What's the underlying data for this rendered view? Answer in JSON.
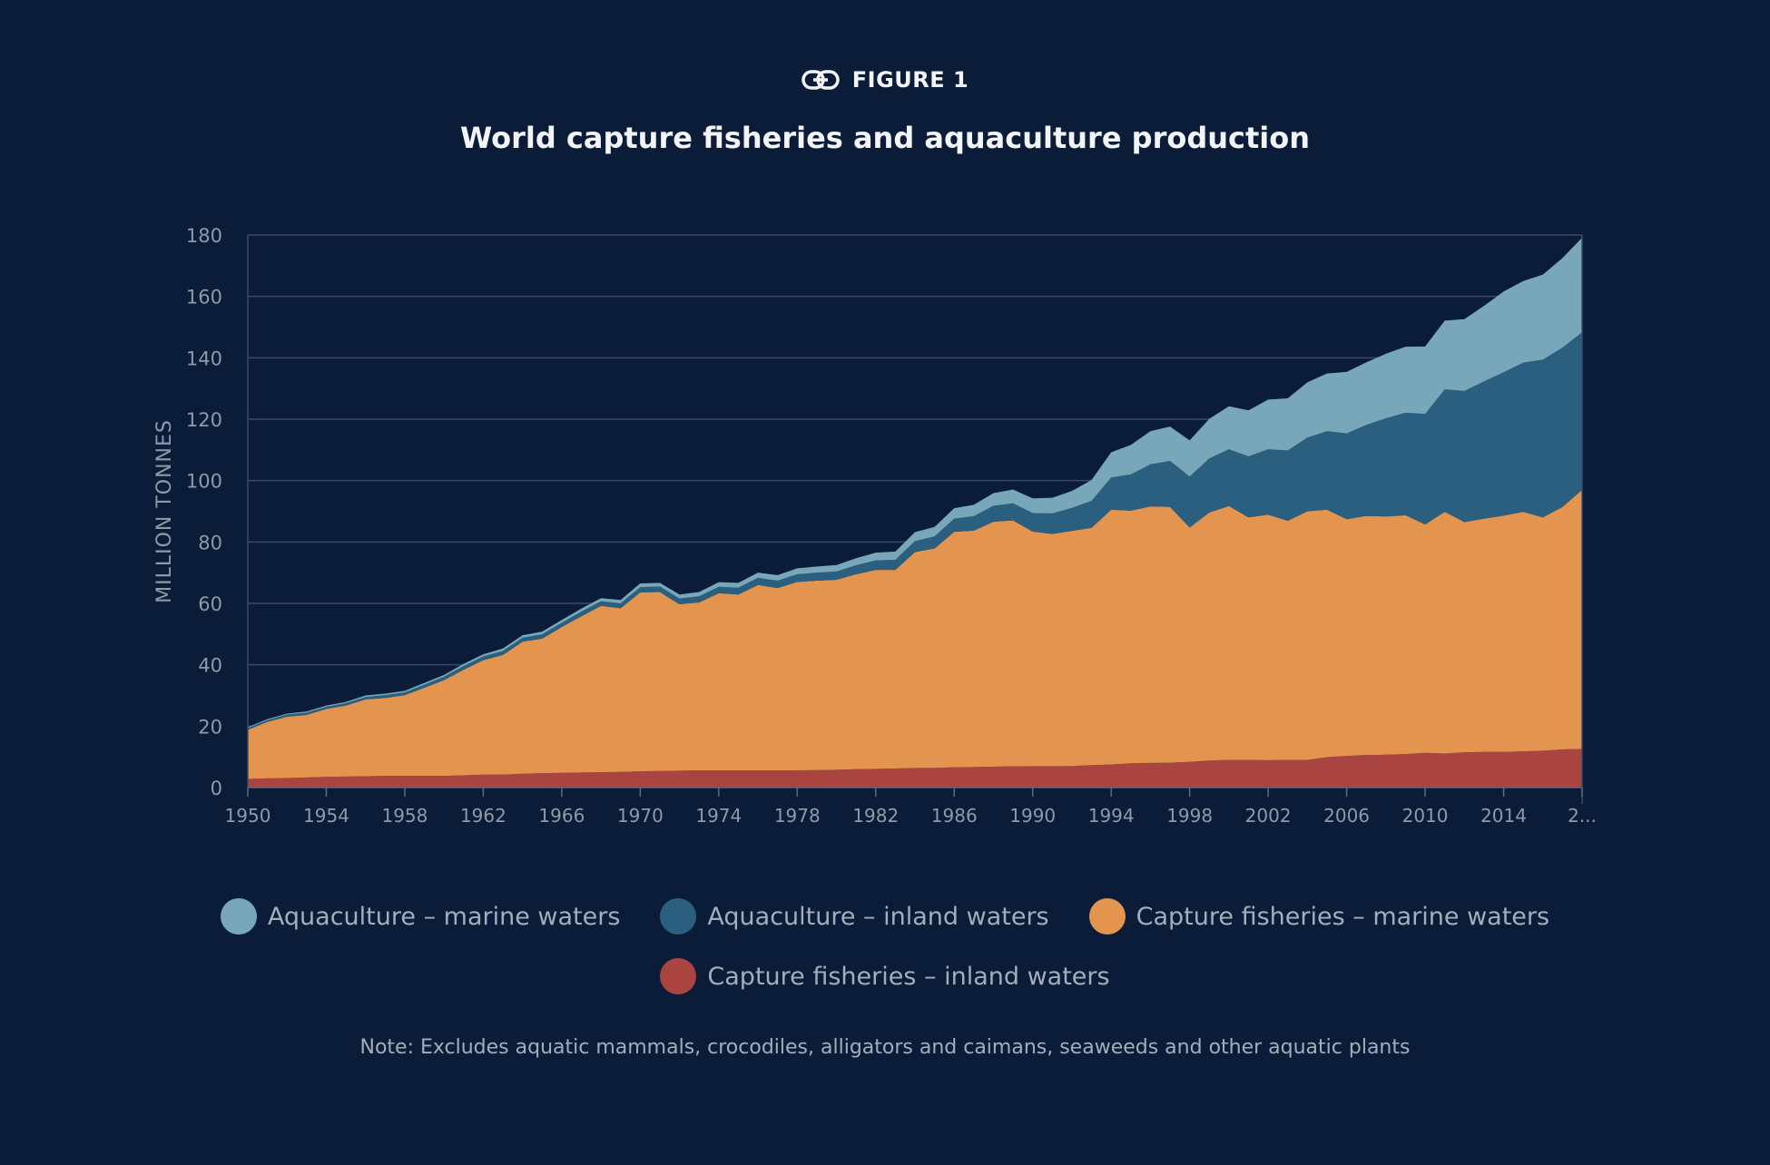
{
  "figure": {
    "label": "FIGURE 1",
    "link_icon": "link-icon"
  },
  "colors": {
    "background": "#0b1c38",
    "gridline": "#3a4a66",
    "axis_text": "#8f99a8"
  },
  "chart_data": {
    "type": "area",
    "stacked": true,
    "title": "World capture fisheries and aquaculture production",
    "xlabel": "",
    "ylabel": "MILLION TONNES",
    "xlim": [
      1950,
      2018
    ],
    "ylim": [
      0,
      180
    ],
    "yticks": [
      0,
      20,
      40,
      60,
      80,
      100,
      120,
      140,
      160,
      180
    ],
    "xtick_labels": [
      "1950",
      "1954",
      "1958",
      "1962",
      "1966",
      "1970",
      "1974",
      "1978",
      "1982",
      "1986",
      "1990",
      "1994",
      "1998",
      "2002",
      "2006",
      "2010",
      "2014",
      "2..."
    ],
    "grid": "horizontal",
    "legend_position": "bottom",
    "x": [
      1950,
      1951,
      1952,
      1953,
      1954,
      1955,
      1956,
      1957,
      1958,
      1959,
      1960,
      1961,
      1962,
      1963,
      1964,
      1965,
      1966,
      1967,
      1968,
      1969,
      1970,
      1971,
      1972,
      1973,
      1974,
      1975,
      1976,
      1977,
      1978,
      1979,
      1980,
      1981,
      1982,
      1983,
      1984,
      1985,
      1986,
      1987,
      1988,
      1989,
      1990,
      1991,
      1992,
      1993,
      1994,
      1995,
      1996,
      1997,
      1998,
      1999,
      2000,
      2001,
      2002,
      2003,
      2004,
      2005,
      2006,
      2007,
      2008,
      2009,
      2010,
      2011,
      2012,
      2013,
      2014,
      2015,
      2016,
      2017,
      2018
    ],
    "series": [
      {
        "name": "Capture fisheries – inland waters",
        "color": "#a94441",
        "values": [
          2.8,
          3.0,
          3.1,
          3.3,
          3.5,
          3.6,
          3.7,
          3.8,
          3.8,
          3.8,
          3.8,
          4.0,
          4.2,
          4.2,
          4.5,
          4.7,
          4.8,
          4.9,
          5.0,
          5.1,
          5.3,
          5.4,
          5.5,
          5.6,
          5.6,
          5.6,
          5.6,
          5.6,
          5.6,
          5.7,
          5.8,
          6.0,
          6.1,
          6.2,
          6.4,
          6.4,
          6.6,
          6.7,
          6.8,
          6.9,
          7.0,
          7.0,
          7.0,
          7.3,
          7.5,
          7.9,
          8.0,
          8.1,
          8.4,
          8.8,
          9.0,
          9.0,
          8.9,
          9.0,
          9.0,
          9.9,
          10.3,
          10.6,
          10.7,
          10.9,
          11.3,
          11.1,
          11.5,
          11.6,
          11.6,
          11.8,
          12.0,
          12.4,
          12.6
        ]
      },
      {
        "name": "Capture fisheries – marine waters",
        "color": "#e3944f",
        "values": [
          16.0,
          18.4,
          20.0,
          20.4,
          22.1,
          23.1,
          25.0,
          25.4,
          26.3,
          28.7,
          31.2,
          34.4,
          37.3,
          39.0,
          43.0,
          43.8,
          47.5,
          50.9,
          54.2,
          53.3,
          58.3,
          58.3,
          54.2,
          54.7,
          57.7,
          57.3,
          60.4,
          59.4,
          61.4,
          61.7,
          61.9,
          63.5,
          64.8,
          64.7,
          70.3,
          71.5,
          76.7,
          77.0,
          79.8,
          80.1,
          76.4,
          75.6,
          76.6,
          77.3,
          83.0,
          82.3,
          83.6,
          83.3,
          76.3,
          80.8,
          82.7,
          79.0,
          80.0,
          77.9,
          81.0,
          80.6,
          77.1,
          77.9,
          77.6,
          77.8,
          74.4,
          78.7,
          75.0,
          76.0,
          77.0,
          78.0,
          76.0,
          79.0,
          84.4
        ]
      },
      {
        "name": "Aquaculture – inland waters",
        "color": "#2a5f80",
        "values": [
          0.6,
          0.6,
          0.7,
          0.7,
          0.7,
          0.8,
          0.8,
          0.9,
          0.9,
          1.0,
          1.1,
          1.2,
          1.2,
          1.3,
          1.3,
          1.4,
          1.4,
          1.5,
          1.5,
          1.6,
          1.7,
          1.8,
          1.9,
          2.0,
          2.1,
          2.2,
          2.3,
          2.4,
          2.5,
          2.6,
          2.7,
          2.9,
          3.1,
          3.3,
          3.6,
          3.9,
          4.3,
          4.7,
          5.2,
          5.6,
          6.0,
          6.7,
          7.5,
          8.8,
          10.5,
          11.8,
          13.7,
          15.0,
          16.6,
          17.6,
          18.5,
          19.9,
          21.3,
          22.9,
          24.0,
          25.6,
          28.0,
          29.6,
          32.0,
          33.4,
          36.0,
          39.9,
          42.7,
          44.7,
          46.7,
          48.6,
          51.4,
          51.9,
          51.3
        ]
      },
      {
        "name": "Aquaculture – marine waters",
        "color": "#78a7b9",
        "values": [
          0.3,
          0.3,
          0.3,
          0.4,
          0.4,
          0.4,
          0.5,
          0.5,
          0.5,
          0.6,
          0.6,
          0.7,
          0.7,
          0.8,
          0.8,
          0.9,
          0.9,
          1.0,
          1.0,
          1.1,
          1.2,
          1.2,
          1.3,
          1.4,
          1.5,
          1.6,
          1.7,
          1.8,
          1.9,
          2.0,
          2.1,
          2.3,
          2.5,
          2.7,
          2.9,
          3.1,
          3.4,
          3.7,
          4.1,
          4.5,
          4.8,
          5.1,
          5.5,
          6.8,
          8.2,
          9.6,
          10.8,
          11.2,
          11.8,
          12.9,
          14.0,
          15.0,
          16.2,
          17.0,
          18.0,
          18.8,
          20.0,
          20.4,
          21.0,
          21.5,
          22.0,
          22.4,
          23.4,
          24.6,
          26.3,
          26.6,
          27.7,
          29.2,
          30.8
        ]
      }
    ]
  },
  "legend": {
    "items": [
      {
        "label": "Aquaculture – marine waters",
        "color": "#78a7b9"
      },
      {
        "label": "Aquaculture – inland waters",
        "color": "#2a5f80"
      },
      {
        "label": "Capture fisheries – marine waters",
        "color": "#e3944f"
      },
      {
        "label": "Capture fisheries – inland waters",
        "color": "#a94441"
      }
    ]
  },
  "note": "Note: Excludes aquatic mammals, crocodiles, alligators and caimans, seaweeds and other aquatic plants"
}
